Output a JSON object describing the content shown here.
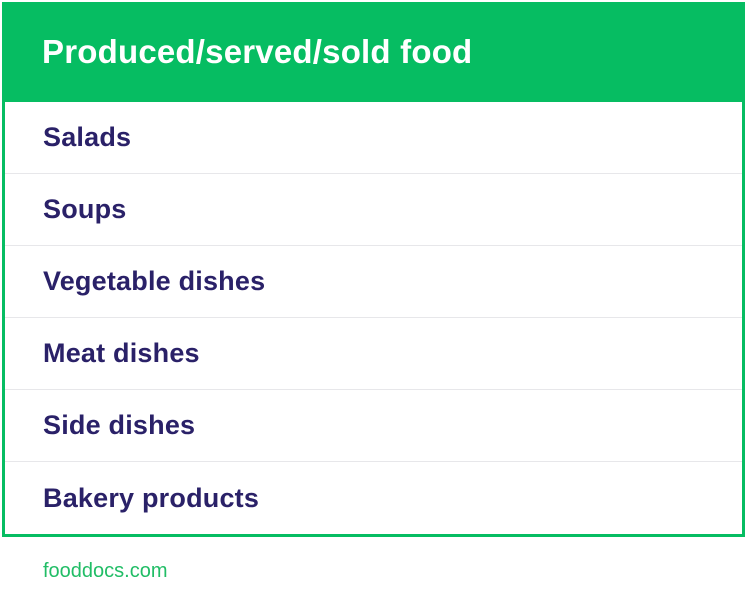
{
  "chart_data": {
    "type": "table",
    "title": "Produced/served/sold food",
    "columns": [
      "Produced/served/sold food"
    ],
    "rows": [
      [
        "Salads"
      ],
      [
        "Soups"
      ],
      [
        "Vegetable dishes"
      ],
      [
        "Meat dishes"
      ],
      [
        "Side dishes"
      ],
      [
        "Bakery products"
      ]
    ],
    "legend_position": "none",
    "grid": "horizontal-separators"
  },
  "footer": {
    "site_label": "fooddocs.com"
  },
  "colors": {
    "brand_green": "#06bd62",
    "header_text": "#ffffff",
    "row_text_navy": "#2a2168",
    "separator_gray": "#e7e7ea",
    "footer_link_green": "#21bd66",
    "background": "#ffffff"
  }
}
